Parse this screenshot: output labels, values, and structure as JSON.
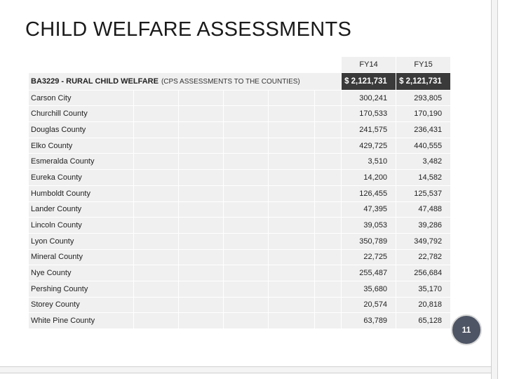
{
  "title": "CHILD WELFARE ASSESSMENTS",
  "table": {
    "fy_headers": [
      "FY14",
      "FY15"
    ],
    "program": {
      "label": "BA3229 - RURAL CHILD WELFARE",
      "sublabel": "(CPS ASSESSMENTS TO THE COUNTIES)",
      "fy14": "$ 2,121,731",
      "fy15": "$ 2,121,731"
    },
    "rows": [
      {
        "county": "Carson City",
        "fy14": "300,241",
        "fy15": "293,805"
      },
      {
        "county": "Churchill County",
        "fy14": "170,533",
        "fy15": "170,190"
      },
      {
        "county": "Douglas County",
        "fy14": "241,575",
        "fy15": "236,431"
      },
      {
        "county": "Elko County",
        "fy14": "429,725",
        "fy15": "440,555"
      },
      {
        "county": "Esmeralda County",
        "fy14": "3,510",
        "fy15": "3,482"
      },
      {
        "county": "Eureka County",
        "fy14": "14,200",
        "fy15": "14,582"
      },
      {
        "county": "Humboldt County",
        "fy14": "126,455",
        "fy15": "125,537"
      },
      {
        "county": "Lander County",
        "fy14": "47,395",
        "fy15": "47,488"
      },
      {
        "county": "Lincoln County",
        "fy14": "39,053",
        "fy15": "39,286"
      },
      {
        "county": "Lyon County",
        "fy14": "350,789",
        "fy15": "349,792"
      },
      {
        "county": "Mineral County",
        "fy14": "22,725",
        "fy15": "22,782"
      },
      {
        "county": "Nye County",
        "fy14": "255,487",
        "fy15": "256,684"
      },
      {
        "county": "Pershing County",
        "fy14": "35,680",
        "fy15": "35,170"
      },
      {
        "county": "Storey County",
        "fy14": "20,574",
        "fy15": "20,818"
      },
      {
        "county": "White Pine County",
        "fy14": "63,789",
        "fy15": "65,128"
      }
    ]
  },
  "page_number": "11",
  "colors": {
    "cell_bg": "#f0f0f0",
    "amount_bg": "#3a3a3a",
    "page_badge": "#4e5565"
  }
}
